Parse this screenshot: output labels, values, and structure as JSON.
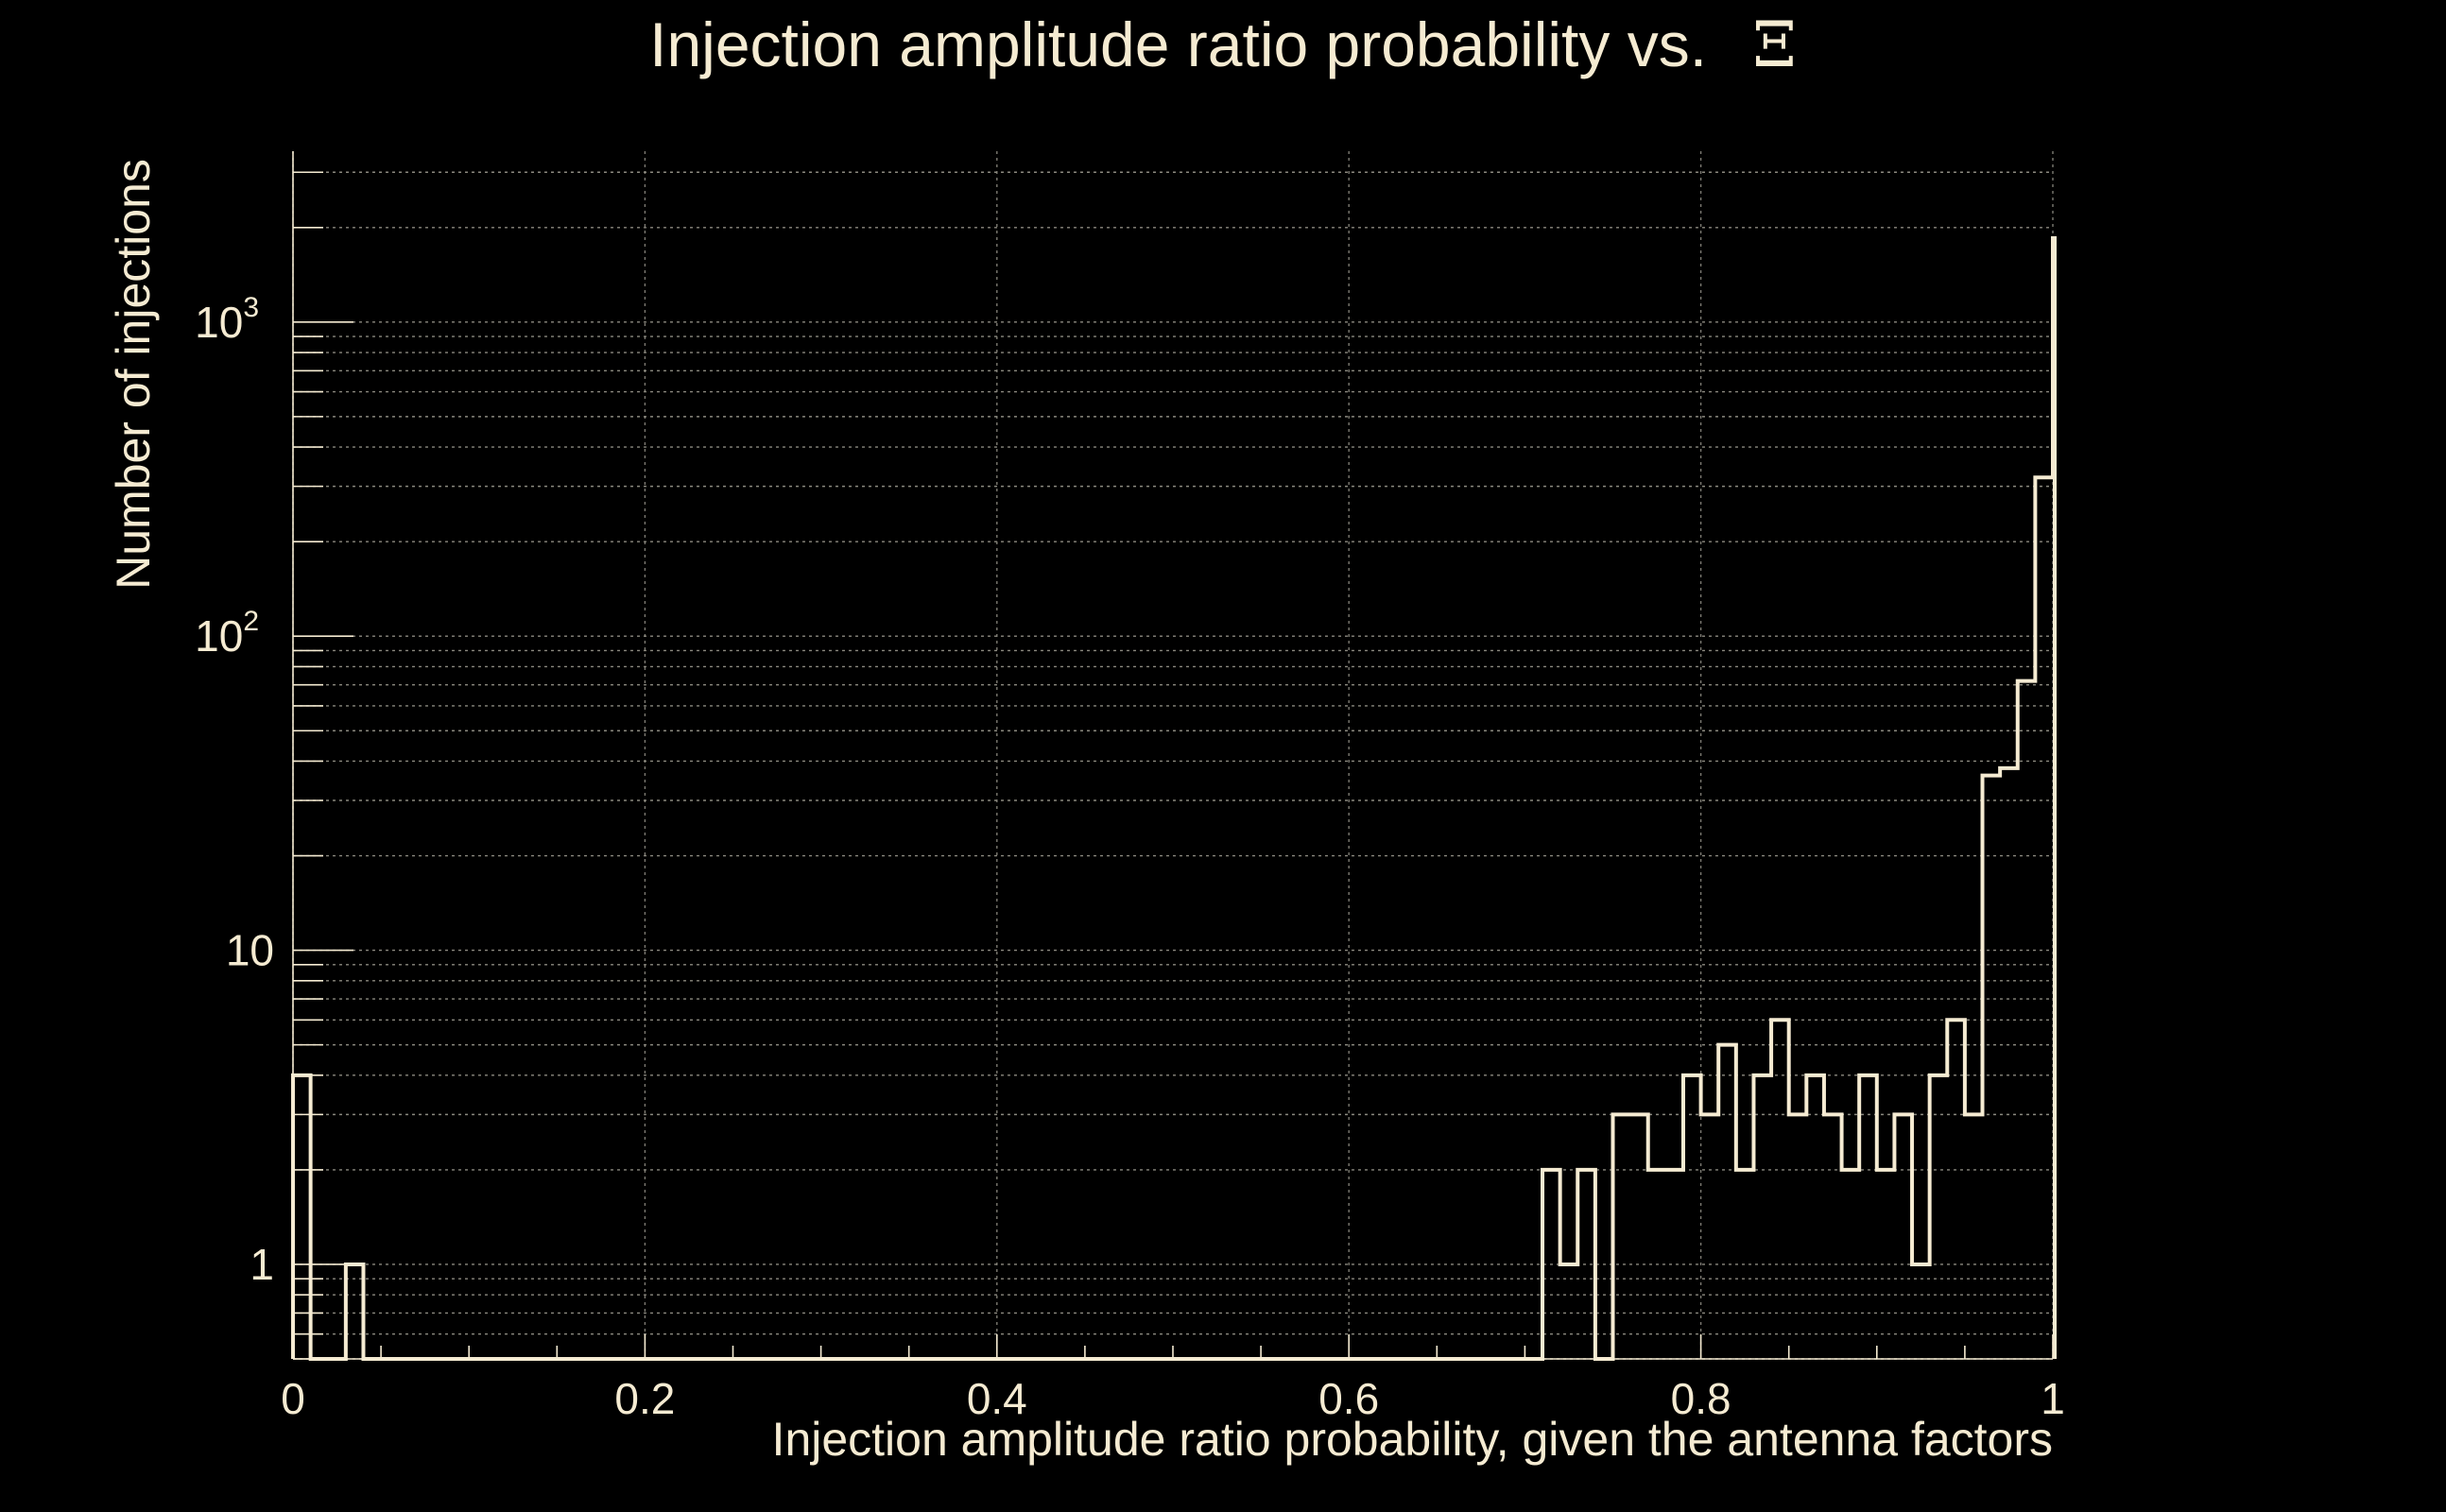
{
  "chart_data": {
    "type": "histogram",
    "title": "Injection amplitude ratio probability vs.",
    "title_symbol": "Ξ",
    "xlabel": "Injection amplitude ratio probability, given the antenna factors",
    "ylabel": "Number of injections",
    "xlim": [
      0,
      1
    ],
    "ylim": [
      0.5,
      3500
    ],
    "yscale": "log",
    "x_ticks": [
      {
        "value": 0,
        "label": "0"
      },
      {
        "value": 0.2,
        "label": "0.2"
      },
      {
        "value": 0.4,
        "label": "0.4"
      },
      {
        "value": 0.6,
        "label": "0.6"
      },
      {
        "value": 0.8,
        "label": "0.8"
      },
      {
        "value": 1,
        "label": "1"
      }
    ],
    "y_ticks": [
      {
        "value": 1,
        "base": "1",
        "exp": ""
      },
      {
        "value": 10,
        "base": "10",
        "exp": ""
      },
      {
        "value": 100,
        "base": "10",
        "exp": "2"
      },
      {
        "value": 1000,
        "base": "10",
        "exp": "3"
      }
    ],
    "grid": true,
    "bin_width": 0.01,
    "bins_start": 0,
    "counts": [
      4,
      0,
      0,
      1,
      0,
      0,
      0,
      0,
      0,
      0,
      0,
      0,
      0,
      0,
      0,
      0,
      0,
      0,
      0,
      0,
      0,
      0,
      0,
      0,
      0,
      0,
      0,
      0,
      0,
      0,
      0,
      0,
      0,
      0,
      0,
      0,
      0,
      0,
      0,
      0,
      0,
      0,
      0,
      0,
      0,
      0,
      0,
      0,
      0,
      0,
      0,
      0,
      0,
      0,
      0,
      0,
      0,
      0,
      0,
      0,
      0,
      0,
      0,
      0,
      0,
      0,
      0,
      0,
      0,
      0,
      0,
      2,
      1,
      2,
      0,
      3,
      3,
      2,
      2,
      4,
      3,
      5,
      2,
      4,
      6,
      3,
      4,
      3,
      2,
      4,
      2,
      3,
      1,
      4,
      6,
      3,
      36,
      38,
      72,
      320,
      1850
    ]
  }
}
